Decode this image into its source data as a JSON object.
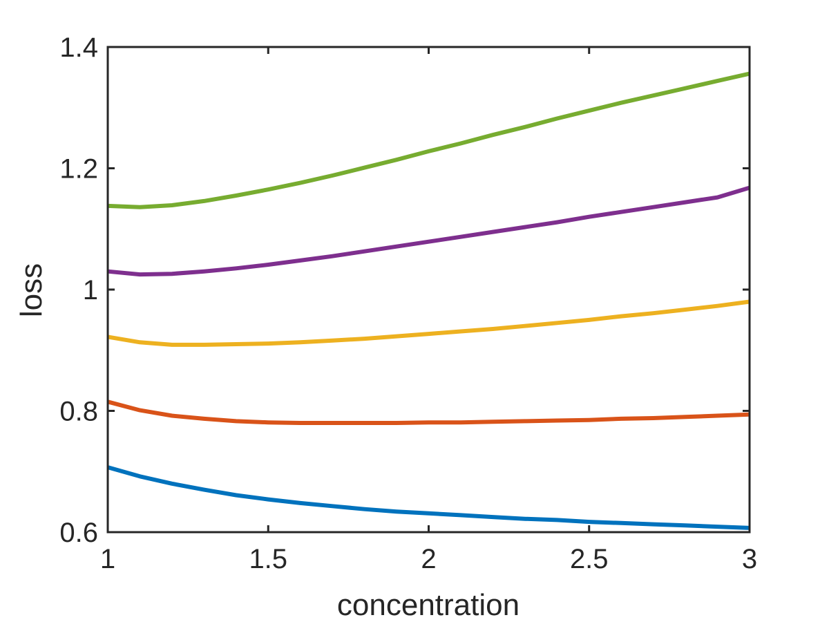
{
  "chart_data": {
    "type": "line",
    "title": "",
    "xlabel": "concentration",
    "ylabel": "loss",
    "xlim": [
      1,
      3
    ],
    "ylim": [
      0.6,
      1.4
    ],
    "grid": false,
    "legend": "none",
    "x_ticks": [
      1,
      1.5,
      2,
      2.5,
      3
    ],
    "x_tick_labels": [
      "1",
      "1.5",
      "2",
      "2.5",
      "3"
    ],
    "y_ticks": [
      0.6,
      0.8,
      1.0,
      1.2,
      1.4
    ],
    "y_tick_labels": [
      "0.6",
      "0.8",
      "1",
      "1.2",
      "1.4"
    ],
    "x": [
      1.0,
      1.1,
      1.2,
      1.3,
      1.4,
      1.5,
      1.6,
      1.7,
      1.8,
      1.9,
      2.0,
      2.1,
      2.2,
      2.3,
      2.4,
      2.5,
      2.6,
      2.7,
      2.8,
      2.9,
      3.0
    ],
    "series": [
      {
        "color": "#0072BD",
        "values": [
          0.707,
          0.692,
          0.68,
          0.67,
          0.661,
          0.654,
          0.648,
          0.643,
          0.638,
          0.634,
          0.631,
          0.628,
          0.625,
          0.622,
          0.62,
          0.617,
          0.615,
          0.613,
          0.611,
          0.609,
          0.607
        ]
      },
      {
        "color": "#D95319",
        "values": [
          0.815,
          0.801,
          0.792,
          0.787,
          0.783,
          0.781,
          0.78,
          0.78,
          0.78,
          0.78,
          0.781,
          0.781,
          0.782,
          0.783,
          0.784,
          0.785,
          0.787,
          0.788,
          0.79,
          0.792,
          0.794
        ]
      },
      {
        "color": "#EDB120",
        "values": [
          0.922,
          0.913,
          0.909,
          0.909,
          0.91,
          0.911,
          0.913,
          0.916,
          0.919,
          0.923,
          0.927,
          0.931,
          0.935,
          0.94,
          0.945,
          0.95,
          0.956,
          0.961,
          0.967,
          0.973,
          0.98
        ]
      },
      {
        "color": "#7E2F8E",
        "values": [
          1.03,
          1.025,
          1.026,
          1.03,
          1.035,
          1.041,
          1.048,
          1.055,
          1.063,
          1.071,
          1.079,
          1.087,
          1.095,
          1.103,
          1.111,
          1.12,
          1.128,
          1.136,
          1.144,
          1.152,
          1.168
        ]
      },
      {
        "color": "#77AC30",
        "values": [
          1.138,
          1.136,
          1.139,
          1.146,
          1.155,
          1.165,
          1.176,
          1.188,
          1.201,
          1.214,
          1.228,
          1.241,
          1.255,
          1.268,
          1.282,
          1.295,
          1.308,
          1.32,
          1.332,
          1.344,
          1.356
        ]
      }
    ]
  }
}
